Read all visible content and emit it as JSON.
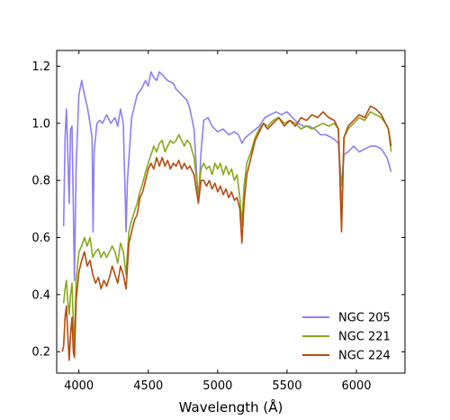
{
  "chart_data": {
    "type": "line",
    "title": "",
    "xlabel": "Wavelength (Å)",
    "ylabel": "",
    "xlim": [
      3840,
      6350
    ],
    "ylim": [
      0.125,
      1.255
    ],
    "xticks": [
      4000,
      4500,
      5000,
      5500,
      6000
    ],
    "yticks": [
      0.2,
      0.4,
      0.6,
      0.8,
      1.0,
      1.2
    ],
    "xtick_labels": [
      "4000",
      "4500",
      "5000",
      "5500",
      "6000"
    ],
    "ytick_labels": [
      "0.2",
      "0.4",
      "0.6",
      "0.8",
      "1.0",
      "1.2"
    ],
    "ticks": "inward, all four sides",
    "grid": false,
    "legend": {
      "placement": "lower-right"
    },
    "series": [
      {
        "name": "NGC 205",
        "color": "#8c7ff5",
        "points": [
          [
            3890,
            0.64
          ],
          [
            3900,
            0.95
          ],
          [
            3910,
            1.05
          ],
          [
            3920,
            0.9
          ],
          [
            3930,
            0.72
          ],
          [
            3940,
            0.98
          ],
          [
            3950,
            0.99
          ],
          [
            3960,
            0.7
          ],
          [
            3968,
            0.45
          ],
          [
            3980,
            0.85
          ],
          [
            4000,
            1.1
          ],
          [
            4020,
            1.15
          ],
          [
            4040,
            1.1
          ],
          [
            4060,
            1.06
          ],
          [
            4080,
            1.0
          ],
          [
            4095,
            0.95
          ],
          [
            4102,
            0.62
          ],
          [
            4110,
            0.9
          ],
          [
            4130,
            1.0
          ],
          [
            4150,
            1.01
          ],
          [
            4170,
            1.0
          ],
          [
            4200,
            1.03
          ],
          [
            4230,
            1.0
          ],
          [
            4260,
            1.02
          ],
          [
            4280,
            0.99
          ],
          [
            4300,
            1.05
          ],
          [
            4320,
            1.0
          ],
          [
            4340,
            0.62
          ],
          [
            4350,
            0.8
          ],
          [
            4380,
            1.02
          ],
          [
            4420,
            1.1
          ],
          [
            4450,
            1.12
          ],
          [
            4480,
            1.15
          ],
          [
            4500,
            1.13
          ],
          [
            4520,
            1.18
          ],
          [
            4540,
            1.16
          ],
          [
            4560,
            1.15
          ],
          [
            4580,
            1.18
          ],
          [
            4600,
            1.17
          ],
          [
            4640,
            1.15
          ],
          [
            4680,
            1.14
          ],
          [
            4700,
            1.12
          ],
          [
            4740,
            1.1
          ],
          [
            4780,
            1.08
          ],
          [
            4800,
            1.05
          ],
          [
            4830,
            0.98
          ],
          [
            4861,
            0.72
          ],
          [
            4880,
            0.9
          ],
          [
            4900,
            1.01
          ],
          [
            4930,
            1.02
          ],
          [
            4960,
            0.99
          ],
          [
            5000,
            0.97
          ],
          [
            5040,
            0.98
          ],
          [
            5080,
            0.96
          ],
          [
            5120,
            0.97
          ],
          [
            5150,
            0.96
          ],
          [
            5175,
            0.93
          ],
          [
            5200,
            0.95
          ],
          [
            5250,
            0.97
          ],
          [
            5300,
            0.99
          ],
          [
            5340,
            1.02
          ],
          [
            5380,
            1.03
          ],
          [
            5420,
            1.04
          ],
          [
            5460,
            1.03
          ],
          [
            5500,
            1.04
          ],
          [
            5540,
            1.02
          ],
          [
            5580,
            1.0
          ],
          [
            5620,
            0.99
          ],
          [
            5660,
            0.99
          ],
          [
            5700,
            0.98
          ],
          [
            5740,
            0.96
          ],
          [
            5780,
            0.96
          ],
          [
            5820,
            0.95
          ],
          [
            5850,
            0.94
          ],
          [
            5870,
            0.93
          ],
          [
            5893,
            0.78
          ],
          [
            5910,
            0.89
          ],
          [
            5940,
            0.9
          ],
          [
            5980,
            0.92
          ],
          [
            6020,
            0.9
          ],
          [
            6060,
            0.91
          ],
          [
            6100,
            0.92
          ],
          [
            6140,
            0.92
          ],
          [
            6180,
            0.91
          ],
          [
            6220,
            0.88
          ],
          [
            6250,
            0.83
          ]
        ]
      },
      {
        "name": "NGC 221",
        "color": "#8aa81e",
        "points": [
          [
            3890,
            0.37
          ],
          [
            3900,
            0.42
          ],
          [
            3910,
            0.45
          ],
          [
            3920,
            0.38
          ],
          [
            3930,
            0.33
          ],
          [
            3940,
            0.4
          ],
          [
            3950,
            0.44
          ],
          [
            3960,
            0.3
          ],
          [
            3968,
            0.22
          ],
          [
            3980,
            0.45
          ],
          [
            4000,
            0.55
          ],
          [
            4020,
            0.57
          ],
          [
            4040,
            0.6
          ],
          [
            4060,
            0.57
          ],
          [
            4080,
            0.6
          ],
          [
            4100,
            0.53
          ],
          [
            4120,
            0.55
          ],
          [
            4140,
            0.56
          ],
          [
            4160,
            0.53
          ],
          [
            4180,
            0.55
          ],
          [
            4200,
            0.53
          ],
          [
            4220,
            0.55
          ],
          [
            4240,
            0.57
          ],
          [
            4260,
            0.55
          ],
          [
            4280,
            0.51
          ],
          [
            4300,
            0.58
          ],
          [
            4320,
            0.55
          ],
          [
            4340,
            0.47
          ],
          [
            4360,
            0.62
          ],
          [
            4380,
            0.66
          ],
          [
            4400,
            0.69
          ],
          [
            4420,
            0.72
          ],
          [
            4440,
            0.76
          ],
          [
            4460,
            0.79
          ],
          [
            4480,
            0.83
          ],
          [
            4500,
            0.86
          ],
          [
            4520,
            0.89
          ],
          [
            4540,
            0.92
          ],
          [
            4560,
            0.9
          ],
          [
            4580,
            0.93
          ],
          [
            4600,
            0.94
          ],
          [
            4620,
            0.9
          ],
          [
            4640,
            0.92
          ],
          [
            4660,
            0.94
          ],
          [
            4680,
            0.93
          ],
          [
            4700,
            0.94
          ],
          [
            4720,
            0.96
          ],
          [
            4740,
            0.94
          ],
          [
            4760,
            0.92
          ],
          [
            4780,
            0.94
          ],
          [
            4800,
            0.93
          ],
          [
            4830,
            0.88
          ],
          [
            4861,
            0.75
          ],
          [
            4880,
            0.84
          ],
          [
            4900,
            0.86
          ],
          [
            4920,
            0.84
          ],
          [
            4940,
            0.85
          ],
          [
            4960,
            0.82
          ],
          [
            4980,
            0.86
          ],
          [
            5000,
            0.84
          ],
          [
            5020,
            0.86
          ],
          [
            5040,
            0.82
          ],
          [
            5060,
            0.85
          ],
          [
            5080,
            0.82
          ],
          [
            5100,
            0.84
          ],
          [
            5120,
            0.8
          ],
          [
            5140,
            0.82
          ],
          [
            5160,
            0.74
          ],
          [
            5175,
            0.64
          ],
          [
            5190,
            0.78
          ],
          [
            5210,
            0.86
          ],
          [
            5240,
            0.9
          ],
          [
            5270,
            0.95
          ],
          [
            5300,
            0.98
          ],
          [
            5330,
            1.0
          ],
          [
            5360,
            0.99
          ],
          [
            5400,
            1.01
          ],
          [
            5440,
            1.02
          ],
          [
            5480,
            1.0
          ],
          [
            5520,
            1.01
          ],
          [
            5560,
            1.0
          ],
          [
            5600,
            0.98
          ],
          [
            5640,
            0.99
          ],
          [
            5680,
            0.98
          ],
          [
            5720,
            0.99
          ],
          [
            5760,
            1.0
          ],
          [
            5800,
            0.99
          ],
          [
            5840,
            1.0
          ],
          [
            5870,
            0.98
          ],
          [
            5893,
            0.68
          ],
          [
            5910,
            0.95
          ],
          [
            5940,
            0.98
          ],
          [
            5980,
            1.0
          ],
          [
            6020,
            1.02
          ],
          [
            6060,
            1.01
          ],
          [
            6100,
            1.04
          ],
          [
            6140,
            1.03
          ],
          [
            6180,
            1.02
          ],
          [
            6210,
            1.0
          ],
          [
            6230,
            0.98
          ],
          [
            6250,
            0.9
          ]
        ]
      },
      {
        "name": "NGC 224",
        "color": "#b84b0e",
        "points": [
          [
            3880,
            0.2
          ],
          [
            3890,
            0.22
          ],
          [
            3900,
            0.32
          ],
          [
            3910,
            0.36
          ],
          [
            3920,
            0.26
          ],
          [
            3930,
            0.17
          ],
          [
            3940,
            0.26
          ],
          [
            3950,
            0.32
          ],
          [
            3960,
            0.2
          ],
          [
            3968,
            0.18
          ],
          [
            3980,
            0.38
          ],
          [
            4000,
            0.48
          ],
          [
            4020,
            0.52
          ],
          [
            4040,
            0.55
          ],
          [
            4060,
            0.5
          ],
          [
            4080,
            0.52
          ],
          [
            4100,
            0.47
          ],
          [
            4120,
            0.44
          ],
          [
            4140,
            0.46
          ],
          [
            4160,
            0.42
          ],
          [
            4180,
            0.45
          ],
          [
            4200,
            0.43
          ],
          [
            4220,
            0.46
          ],
          [
            4240,
            0.5
          ],
          [
            4260,
            0.47
          ],
          [
            4280,
            0.44
          ],
          [
            4300,
            0.5
          ],
          [
            4320,
            0.47
          ],
          [
            4340,
            0.42
          ],
          [
            4360,
            0.58
          ],
          [
            4380,
            0.62
          ],
          [
            4400,
            0.66
          ],
          [
            4420,
            0.68
          ],
          [
            4440,
            0.74
          ],
          [
            4460,
            0.76
          ],
          [
            4480,
            0.8
          ],
          [
            4500,
            0.84
          ],
          [
            4520,
            0.86
          ],
          [
            4540,
            0.84
          ],
          [
            4560,
            0.88
          ],
          [
            4580,
            0.85
          ],
          [
            4600,
            0.88
          ],
          [
            4620,
            0.85
          ],
          [
            4640,
            0.87
          ],
          [
            4660,
            0.84
          ],
          [
            4680,
            0.86
          ],
          [
            4700,
            0.85
          ],
          [
            4720,
            0.87
          ],
          [
            4740,
            0.84
          ],
          [
            4760,
            0.86
          ],
          [
            4780,
            0.84
          ],
          [
            4800,
            0.85
          ],
          [
            4830,
            0.82
          ],
          [
            4861,
            0.72
          ],
          [
            4880,
            0.8
          ],
          [
            4900,
            0.8
          ],
          [
            4920,
            0.78
          ],
          [
            4940,
            0.8
          ],
          [
            4960,
            0.77
          ],
          [
            4980,
            0.79
          ],
          [
            5000,
            0.76
          ],
          [
            5020,
            0.78
          ],
          [
            5040,
            0.75
          ],
          [
            5060,
            0.77
          ],
          [
            5080,
            0.74
          ],
          [
            5100,
            0.76
          ],
          [
            5120,
            0.73
          ],
          [
            5140,
            0.74
          ],
          [
            5160,
            0.7
          ],
          [
            5175,
            0.58
          ],
          [
            5190,
            0.72
          ],
          [
            5210,
            0.82
          ],
          [
            5240,
            0.88
          ],
          [
            5270,
            0.94
          ],
          [
            5300,
            0.97
          ],
          [
            5330,
            1.0
          ],
          [
            5360,
            0.98
          ],
          [
            5400,
            1.0
          ],
          [
            5440,
            1.02
          ],
          [
            5480,
            0.99
          ],
          [
            5520,
            1.01
          ],
          [
            5560,
            0.99
          ],
          [
            5600,
            1.02
          ],
          [
            5640,
            1.01
          ],
          [
            5680,
            1.03
          ],
          [
            5720,
            1.02
          ],
          [
            5760,
            1.04
          ],
          [
            5800,
            1.02
          ],
          [
            5840,
            1.01
          ],
          [
            5870,
            0.98
          ],
          [
            5893,
            0.62
          ],
          [
            5910,
            0.95
          ],
          [
            5940,
            0.99
          ],
          [
            5980,
            1.01
          ],
          [
            6020,
            1.03
          ],
          [
            6060,
            1.02
          ],
          [
            6100,
            1.06
          ],
          [
            6140,
            1.05
          ],
          [
            6180,
            1.03
          ],
          [
            6210,
            1.0
          ],
          [
            6230,
            0.98
          ],
          [
            6250,
            0.92
          ]
        ]
      }
    ]
  }
}
